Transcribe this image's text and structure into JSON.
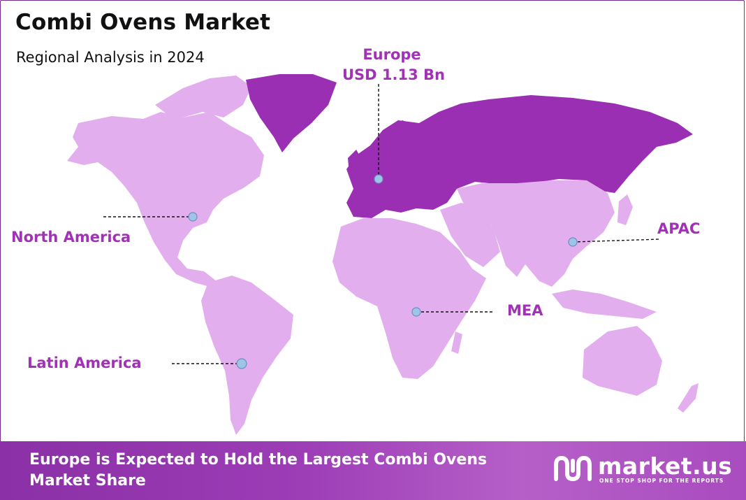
{
  "header": {
    "title": "Combi Ovens Market",
    "subtitle": "Regional Analysis in 2024"
  },
  "map": {
    "type": "world-choropleth",
    "highlight_color": "#9a2fb4",
    "base_color": "#e2aeed",
    "highlighted_region": "Europe",
    "regions": [
      {
        "name": "Europe",
        "value_label": "USD 1.13 Bn"
      },
      {
        "name": "North America"
      },
      {
        "name": "APAC"
      },
      {
        "name": "MEA"
      },
      {
        "name": "Latin America"
      }
    ],
    "labels": {
      "europe": "Europe",
      "europe_value": "USD 1.13 Bn",
      "north_america": "North America",
      "apac": "APAC",
      "mea": "MEA",
      "latin_america": "Latin America"
    }
  },
  "footer": {
    "message": "Europe is Expected to Hold the Largest Combi Ovens Market Share",
    "brand_name": "market.us",
    "brand_tagline": "ONE STOP SHOP FOR THE REPORTS",
    "brand_icon": "market-us-logo-icon"
  }
}
